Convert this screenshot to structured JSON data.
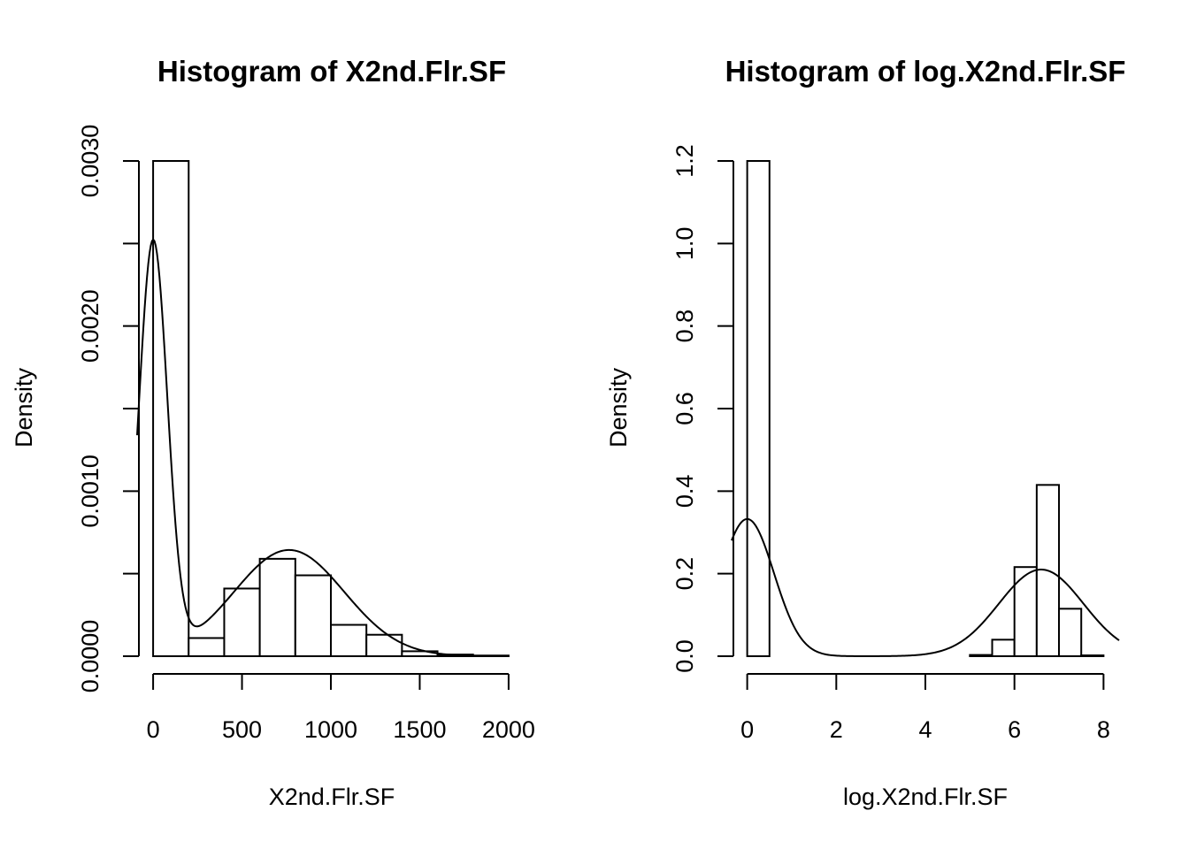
{
  "chart_data": [
    {
      "type": "bar",
      "subtype": "histogram",
      "title": "Histogram of X2nd.Flr.SF",
      "xlabel": "X2nd.Flr.SF",
      "ylabel": "Density",
      "xlim": [
        -90,
        2090
      ],
      "ylim": [
        0,
        0.003
      ],
      "xticks": [
        0,
        500,
        1000,
        1500,
        2000
      ],
      "yticks": [
        0.0,
        0.0005,
        0.001,
        0.0015,
        0.002,
        0.0025,
        0.003
      ],
      "ytick_labels": [
        "0.0000",
        "",
        "0.0010",
        "",
        "0.0020",
        "",
        "0.0030"
      ],
      "bins": [
        {
          "x0": 0,
          "x1": 200,
          "density": 0.003
        },
        {
          "x0": 200,
          "x1": 400,
          "density": 0.00011
        },
        {
          "x0": 400,
          "x1": 600,
          "density": 0.00041
        },
        {
          "x0": 600,
          "x1": 800,
          "density": 0.00059
        },
        {
          "x0": 800,
          "x1": 1000,
          "density": 0.00049
        },
        {
          "x0": 1000,
          "x1": 1200,
          "density": 0.00019
        },
        {
          "x0": 1200,
          "x1": 1400,
          "density": 0.00013
        },
        {
          "x0": 1400,
          "x1": 1600,
          "density": 3e-05
        },
        {
          "x0": 1600,
          "x1": 1800,
          "density": 1e-05
        },
        {
          "x0": 1800,
          "x1": 2000,
          "density": 4e-06
        }
      ],
      "density_curve": {
        "x_range": [
          -90,
          2000
        ],
        "components": [
          {
            "weight": 0.5,
            "mean": 0,
            "sd": 80
          },
          {
            "weight": 0.5,
            "mean": 765,
            "sd": 310
          }
        ]
      }
    },
    {
      "type": "bar",
      "subtype": "histogram",
      "title": "Histogram of log.X2nd.Flr.SF",
      "xlabel": "log.X2nd.Flr.SF",
      "ylabel": "Density",
      "xlim": [
        -0.35,
        8.35
      ],
      "ylim": [
        0,
        1.2
      ],
      "xticks": [
        0,
        2,
        4,
        6,
        8
      ],
      "yticks": [
        0.0,
        0.2,
        0.4,
        0.6,
        0.8,
        1.0,
        1.2
      ],
      "ytick_labels": [
        "0.0",
        "0.2",
        "0.4",
        "0.6",
        "0.8",
        "1.0",
        "1.2"
      ],
      "bins": [
        {
          "x0": 0,
          "x1": 0.5,
          "density": 1.2
        },
        {
          "x0": 5.0,
          "x1": 5.5,
          "density": 0.003
        },
        {
          "x0": 5.5,
          "x1": 6.0,
          "density": 0.04
        },
        {
          "x0": 6.0,
          "x1": 6.5,
          "density": 0.216
        },
        {
          "x0": 6.5,
          "x1": 7.0,
          "density": 0.415
        },
        {
          "x0": 7.0,
          "x1": 7.5,
          "density": 0.115
        },
        {
          "x0": 7.5,
          "x1": 8.0,
          "density": 0.002
        }
      ],
      "density_curve": {
        "x_range": [
          -0.35,
          8.35
        ],
        "components": [
          {
            "weight": 0.5,
            "mean": 0,
            "sd": 0.6
          },
          {
            "weight": 0.5,
            "mean": 6.6,
            "sd": 0.95
          }
        ]
      }
    }
  ]
}
